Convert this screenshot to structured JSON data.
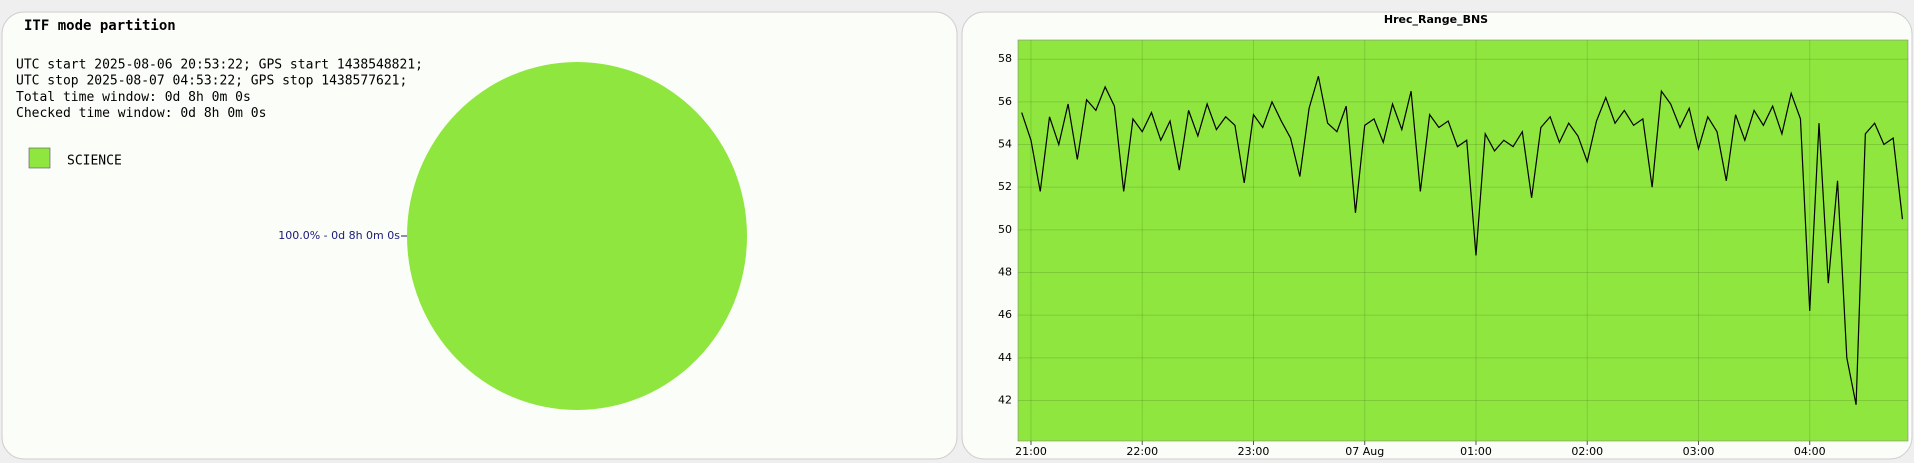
{
  "chart_data": [
    {
      "type": "pie",
      "title": "ITF mode partition",
      "annotations": [
        "UTC start 2025-08-06 20:53:22; GPS start 1438548821;",
        "UTC stop 2025-08-07 04:53:22; GPS stop 1438577621;",
        "Total time window: 0d 8h 0m 0s",
        "Checked time window: 0d 8h 0m 0s"
      ],
      "categories": [
        "SCIENCE"
      ],
      "values": [
        100
      ],
      "value_labels": [
        "100.0% - 0d 8h 0m 0s"
      ],
      "colors": [
        "#8fe63f"
      ],
      "legend": "top-left"
    },
    {
      "type": "line",
      "title": "Hrec_Range_BNS",
      "plot_background": "#8fe63f",
      "color": "#000000",
      "grid": true,
      "x": [
        "Aug 06 20:55",
        "Aug 06 21:00",
        "Aug 06 21:05",
        "Aug 06 21:10",
        "Aug 06 21:15",
        "Aug 06 21:20",
        "Aug 06 21:25",
        "Aug 06 21:30",
        "Aug 06 21:35",
        "Aug 06 21:40",
        "Aug 06 21:45",
        "Aug 06 21:50",
        "Aug 06 21:55",
        "Aug 06 22:00",
        "Aug 06 22:05",
        "Aug 06 22:10",
        "Aug 06 22:15",
        "Aug 06 22:20",
        "Aug 06 22:25",
        "Aug 06 22:30",
        "Aug 06 22:35",
        "Aug 06 22:40",
        "Aug 06 22:45",
        "Aug 06 22:50",
        "Aug 06 22:55",
        "Aug 06 23:00",
        "Aug 06 23:05",
        "Aug 06 23:10",
        "Aug 06 23:15",
        "Aug 06 23:20",
        "Aug 06 23:25",
        "Aug 06 23:30",
        "Aug 06 23:35",
        "Aug 06 23:40",
        "Aug 06 23:45",
        "Aug 06 23:50",
        "Aug 06 23:55",
        "Aug 07 00:00",
        "Aug 07 00:05",
        "Aug 07 00:10",
        "Aug 07 00:15",
        "Aug 07 00:20",
        "Aug 07 00:25",
        "Aug 07 00:30",
        "Aug 07 00:35",
        "Aug 07 00:40",
        "Aug 07 00:45",
        "Aug 07 00:50",
        "Aug 07 00:55",
        "Aug 07 01:00",
        "Aug 07 01:05",
        "Aug 07 01:10",
        "Aug 07 01:15",
        "Aug 07 01:20",
        "Aug 07 01:25",
        "Aug 07 01:30",
        "Aug 07 01:35",
        "Aug 07 01:40",
        "Aug 07 01:45",
        "Aug 07 01:50",
        "Aug 07 01:55",
        "Aug 07 02:00",
        "Aug 07 02:05",
        "Aug 07 02:10",
        "Aug 07 02:15",
        "Aug 07 02:20",
        "Aug 07 02:25",
        "Aug 07 02:30",
        "Aug 07 02:35",
        "Aug 07 02:40",
        "Aug 07 02:45",
        "Aug 07 02:50",
        "Aug 07 02:55",
        "Aug 07 03:00",
        "Aug 07 03:05",
        "Aug 07 03:10",
        "Aug 07 03:15",
        "Aug 07 03:20",
        "Aug 07 03:25",
        "Aug 07 03:30",
        "Aug 07 03:35",
        "Aug 07 03:40",
        "Aug 07 03:45",
        "Aug 07 03:50",
        "Aug 07 03:55",
        "Aug 07 04:00",
        "Aug 07 04:05",
        "Aug 07 04:10",
        "Aug 07 04:15",
        "Aug 07 04:20",
        "Aug 07 04:25",
        "Aug 07 04:30",
        "Aug 07 04:35",
        "Aug 07 04:40",
        "Aug 07 04:45",
        "Aug 07 04:50"
      ],
      "values": [
        55.5,
        54.2,
        51.8,
        55.3,
        54.0,
        55.9,
        53.3,
        56.1,
        55.6,
        56.7,
        55.8,
        51.8,
        55.2,
        54.6,
        55.5,
        54.2,
        55.1,
        52.8,
        55.6,
        54.4,
        55.9,
        54.7,
        55.3,
        54.9,
        52.2,
        55.4,
        54.8,
        56.0,
        55.1,
        54.3,
        52.5,
        55.7,
        57.2,
        55.0,
        54.6,
        55.8,
        50.8,
        54.9,
        55.2,
        54.1,
        55.9,
        54.7,
        56.5,
        51.8,
        55.4,
        54.8,
        55.1,
        53.9,
        54.2,
        48.8,
        54.5,
        53.7,
        54.2,
        53.9,
        54.6,
        51.5,
        54.8,
        55.3,
        54.1,
        55.0,
        54.4,
        53.2,
        55.1,
        56.2,
        55.0,
        55.6,
        54.9,
        55.2,
        52.0,
        56.5,
        55.9,
        54.8,
        55.7,
        53.8,
        55.3,
        54.6,
        52.3,
        55.4,
        54.2,
        55.6,
        54.9,
        55.8,
        54.5,
        56.4,
        55.2,
        46.2,
        55.0,
        47.5,
        52.3,
        44.0,
        41.8,
        54.5,
        55.0,
        54.0,
        54.3,
        50.5
      ],
      "xlim": [
        "Aug 06 20:53",
        "Aug 07 04:53"
      ],
      "xticks": [
        {
          "value": "Aug 06 21:00",
          "label": "21:00"
        },
        {
          "value": "Aug 06 22:00",
          "label": "22:00"
        },
        {
          "value": "Aug 06 23:00",
          "label": "23:00"
        },
        {
          "value": "Aug 07 00:00",
          "label": "07 Aug"
        },
        {
          "value": "Aug 07 01:00",
          "label": "01:00"
        },
        {
          "value": "Aug 07 02:00",
          "label": "02:00"
        },
        {
          "value": "Aug 07 03:00",
          "label": "03:00"
        },
        {
          "value": "Aug 07 04:00",
          "label": "04:00"
        }
      ],
      "ylim": [
        40.1,
        58.9
      ],
      "yticks": [
        42,
        44,
        46,
        48,
        50,
        52,
        54,
        56,
        58
      ]
    }
  ]
}
